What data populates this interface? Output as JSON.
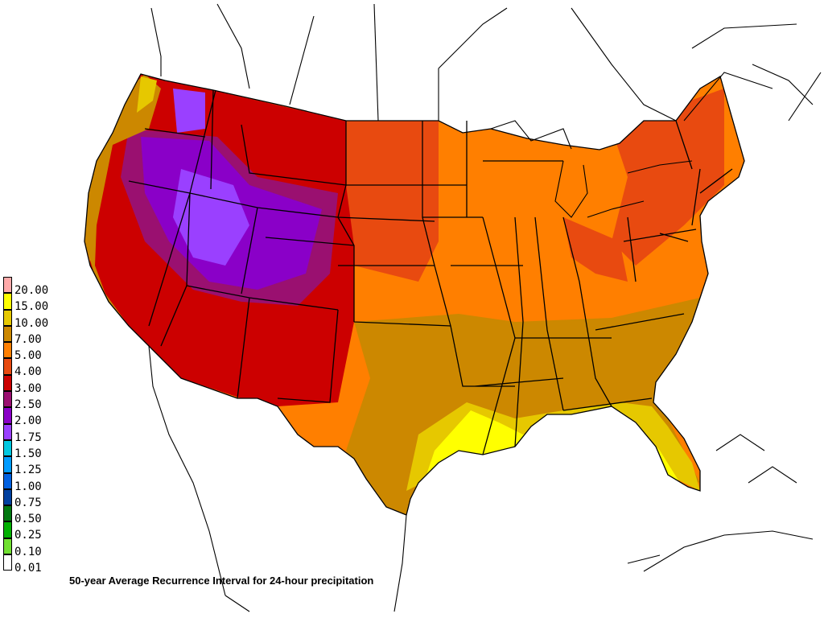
{
  "caption": "50-year Average Recurrence Interval for 24-hour precipitation",
  "legend": {
    "entries": [
      {
        "label": "20.00",
        "color": "#ffaaaa"
      },
      {
        "label": "15.00",
        "color": "#ffff00"
      },
      {
        "label": "10.00",
        "color": "#e6c800"
      },
      {
        "label": "7.00",
        "color": "#cc8800"
      },
      {
        "label": "5.00",
        "color": "#ff7f00"
      },
      {
        "label": "4.00",
        "color": "#e84a10"
      },
      {
        "label": "3.00",
        "color": "#cc0000"
      },
      {
        "label": "2.50",
        "color": "#9a1070"
      },
      {
        "label": "2.00",
        "color": "#8a00c8"
      },
      {
        "label": "1.75",
        "color": "#9a40ff"
      },
      {
        "label": "1.50",
        "color": "#00c8e0"
      },
      {
        "label": "1.25",
        "color": "#009cff"
      },
      {
        "label": "1.00",
        "color": "#0060e0"
      },
      {
        "label": "0.75",
        "color": "#0040a0"
      },
      {
        "label": "0.50",
        "color": "#007810"
      },
      {
        "label": "0.25",
        "color": "#00b000"
      },
      {
        "label": "0.10",
        "color": "#70e030"
      },
      {
        "label": "0.01",
        "color": "#ffffff"
      }
    ]
  },
  "map": {
    "background": "#ffffff",
    "outline_color": "#000000"
  }
}
